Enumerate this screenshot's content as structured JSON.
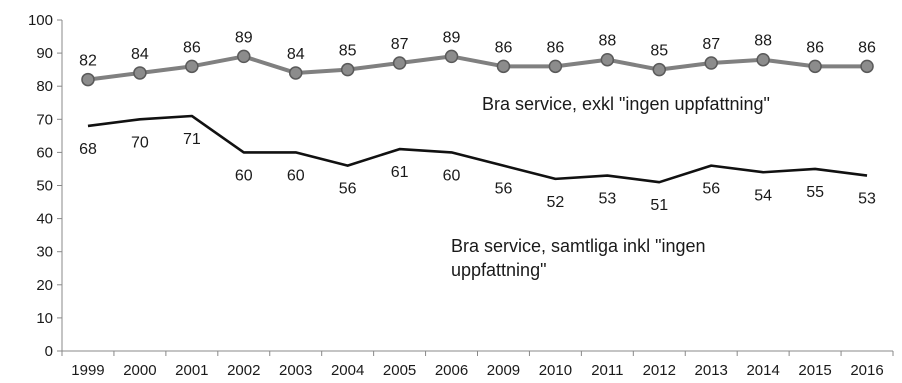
{
  "chart_data": {
    "type": "line",
    "title": "",
    "xlabel": "",
    "ylabel": "",
    "ylim": [
      0,
      100
    ],
    "ytick_step": 10,
    "categories": [
      "1999",
      "2000",
      "2001",
      "2002",
      "2003",
      "2004",
      "2005",
      "2006",
      "2009",
      "2010",
      "2011",
      "2012",
      "2013",
      "2014",
      "2015",
      "2016"
    ],
    "series": [
      {
        "name": "Bra service, exkl \"ingen uppfattning\"",
        "values": [
          82,
          84,
          86,
          89,
          84,
          85,
          87,
          89,
          86,
          86,
          88,
          85,
          87,
          88,
          86,
          86
        ],
        "color": "#808080",
        "marker_color": "#8c8c8c",
        "marker_edge": "#5a5a5a",
        "markers": true
      },
      {
        "name": "Bra service, samtliga inkl \"ingen uppfattning\"",
        "values": [
          68,
          70,
          71,
          60,
          60,
          56,
          61,
          60,
          56,
          52,
          53,
          51,
          56,
          54,
          55,
          53
        ],
        "color": "#111111",
        "markers": false
      }
    ],
    "annotations": [
      {
        "lines": [
          "Bra service, exkl \"ingen uppfattning\""
        ]
      },
      {
        "lines": [
          "Bra service, samtliga inkl \"ingen",
          "uppfattning\""
        ]
      }
    ],
    "grid": false,
    "legend": "none"
  }
}
